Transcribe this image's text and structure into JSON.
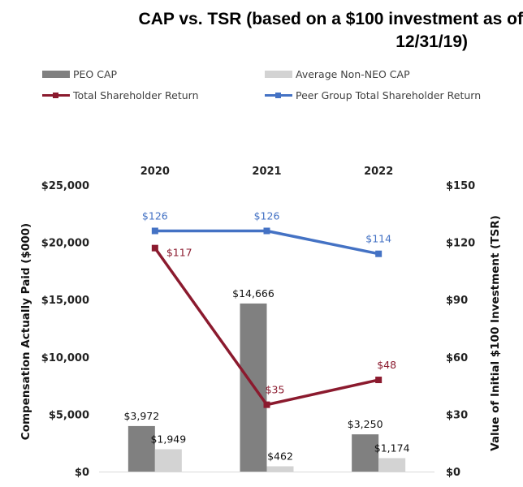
{
  "chart_data": {
    "type": "bar+line",
    "title_line1": "CAP vs. TSR (based on a $100 investment as of",
    "title_line2": "12/31/19)",
    "categories": [
      "2020",
      "2021",
      "2022"
    ],
    "y_left": {
      "label": "Compensation Actually Paid ($000)",
      "min": 0,
      "max": 25000,
      "ticks": [
        0,
        5000,
        10000,
        15000,
        20000,
        25000
      ],
      "tick_labels": [
        "$0",
        "$5,000",
        "$10,000",
        "$15,000",
        "$20,000",
        "$25,000"
      ]
    },
    "y_right": {
      "label": "Value of Initial $100 Investment (TSR)",
      "min": 0,
      "max": 150,
      "ticks": [
        0,
        30,
        60,
        90,
        120,
        150
      ],
      "tick_labels": [
        "$0",
        "$30",
        "$60",
        "$90",
        "$120",
        "$150"
      ]
    },
    "bar_series": [
      {
        "name": "PEO CAP",
        "color": "#808080",
        "values": [
          3972,
          14666,
          3250
        ],
        "labels": [
          "$3,972",
          "$14,666",
          "$3,250"
        ]
      },
      {
        "name": "Average Non-NEO CAP",
        "color": "#d3d3d3",
        "values": [
          1949,
          462,
          1174
        ],
        "labels": [
          "$1,949",
          "$462",
          "$1,174"
        ]
      }
    ],
    "line_series": [
      {
        "name": "Total Shareholder Return",
        "color": "#8b1a2e",
        "values": [
          117,
          35,
          48
        ],
        "labels": [
          "$117",
          "$35",
          "$48"
        ]
      },
      {
        "name": "Peer Group Total Shareholder Return",
        "color": "#4472c4",
        "values": [
          126,
          126,
          114
        ],
        "labels": [
          "$126",
          "$126",
          "$114"
        ]
      }
    ],
    "legend": [
      "PEO CAP",
      "Average Non-NEO CAP",
      "Total Shareholder Return",
      "Peer Group Total Shareholder Return"
    ],
    "grid": false
  }
}
